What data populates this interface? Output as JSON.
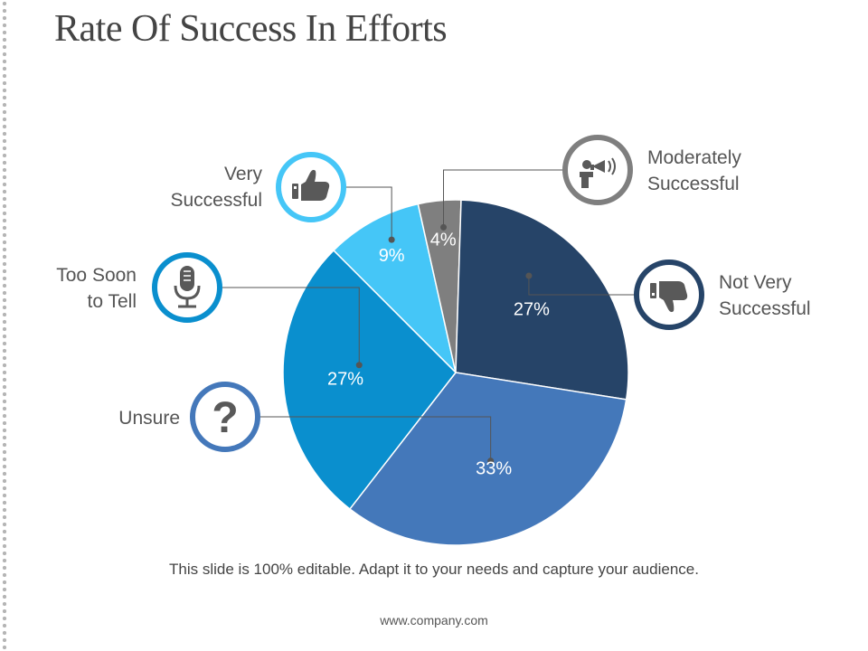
{
  "title": "Rate Of Success In Efforts",
  "footer_note": "This slide is 100% editable. Adapt it to your needs and capture your audience.",
  "website": "www.company.com",
  "colors": {
    "very_successful": "#45c6f7",
    "moderately_successful": "#7f7f7f",
    "not_very_successful": "#264468",
    "unsure": "#4478ba",
    "too_soon": "#0a8fce"
  },
  "labels": {
    "very_successful": [
      "Very",
      "Successful"
    ],
    "moderately_successful": [
      "Moderately",
      "Successful"
    ],
    "not_very_successful": [
      "Not Very",
      "Successful"
    ],
    "unsure": [
      "Unsure"
    ],
    "too_soon": [
      "Too Soon",
      "to Tell"
    ]
  },
  "icons": {
    "very_successful": "thumbs-up-icon",
    "moderately_successful": "megaphone-icon",
    "not_very_successful": "thumbs-down-icon",
    "unsure": "question-icon",
    "too_soon": "microphone-icon"
  },
  "chart_data": {
    "type": "pie",
    "title": "Rate Of Success In Efforts",
    "slices": [
      {
        "label": "Very Successful",
        "value": 9,
        "display": "9%",
        "color": "#45c6f7"
      },
      {
        "label": "Moderately Successful",
        "value": 4,
        "display": "4%",
        "color": "#7f7f7f"
      },
      {
        "label": "Not Very Successful",
        "value": 27,
        "display": "27%",
        "color": "#264468"
      },
      {
        "label": "Unsure",
        "value": 33,
        "display": "33%",
        "color": "#4478ba"
      },
      {
        "label": "Too Soon to Tell",
        "value": 27,
        "display": "27%",
        "color": "#0a8fce"
      }
    ]
  }
}
